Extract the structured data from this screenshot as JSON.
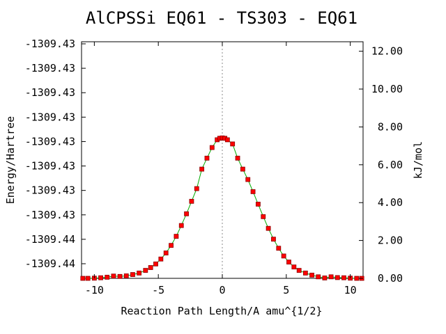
{
  "chart_data": {
    "type": "scatter",
    "title": "AlCPSSi   EQ61 - TS303 - EQ61",
    "xlabel": "Reaction Path Length/A amu^{1/2}",
    "ylabel": "Energy/Hartree",
    "y2label": "kJ/mol",
    "xlim": [
      -11,
      11
    ],
    "y2lim": [
      0,
      12.5
    ],
    "x_ticks": [
      -10,
      -5,
      0,
      5,
      10
    ],
    "x_tick_labels": [
      "-10",
      "-5",
      "0",
      "5",
      "10"
    ],
    "y2_ticks": [
      0,
      2,
      4,
      6,
      8,
      10,
      12
    ],
    "y2_tick_labels": [
      "0.00",
      "2.00",
      "4.00",
      "6.00",
      "8.00",
      "10.00",
      "12.00"
    ],
    "y_tick_labels": [
      "-1309.44",
      "-1309.44",
      "-1309.43",
      "-1309.43",
      "-1309.43",
      "-1309.43",
      "-1309.43",
      "-1309.43",
      "-1309.43",
      "-1309.43"
    ],
    "ts_marker_x": 0,
    "series": [
      {
        "x": [
          -10.9,
          -10.5,
          -10.0,
          -9.5,
          -9.0,
          -8.5,
          -8.0,
          -7.5,
          -7.0,
          -6.5,
          -6.0,
          -5.6,
          -5.2,
          -4.8,
          -4.4,
          -4.0,
          -3.6,
          -3.2,
          -2.8,
          -2.4,
          -2.0,
          -1.6,
          -1.2,
          -0.8,
          -0.4,
          -0.2,
          0.0,
          0.2,
          0.4,
          0.8,
          1.2,
          1.6,
          2.0,
          2.4,
          2.8,
          3.2,
          3.6,
          4.0,
          4.4,
          4.8,
          5.2,
          5.6,
          6.0,
          6.5,
          7.0,
          7.5,
          8.0,
          8.5,
          9.0,
          9.5,
          10.0,
          10.5,
          10.9
        ],
        "y": [
          0.0,
          0.0,
          0.01,
          0.03,
          0.06,
          0.12,
          0.1,
          0.13,
          0.2,
          0.28,
          0.42,
          0.57,
          0.76,
          1.02,
          1.34,
          1.74,
          2.22,
          2.79,
          3.41,
          4.07,
          4.74,
          5.77,
          6.35,
          6.91,
          7.32,
          7.4,
          7.42,
          7.4,
          7.32,
          7.1,
          6.35,
          5.77,
          5.22,
          4.58,
          3.92,
          3.26,
          2.64,
          2.07,
          1.59,
          1.18,
          0.86,
          0.6,
          0.42,
          0.28,
          0.17,
          0.08,
          0.02,
          0.08,
          0.04,
          0.03,
          0.01,
          0.0,
          0.0
        ]
      }
    ],
    "colors": {
      "curve": "#00aa00",
      "marker": "#ff0000",
      "marker_edge": "#8b0000",
      "ts_line": "#888888",
      "frame": "#000000"
    }
  }
}
